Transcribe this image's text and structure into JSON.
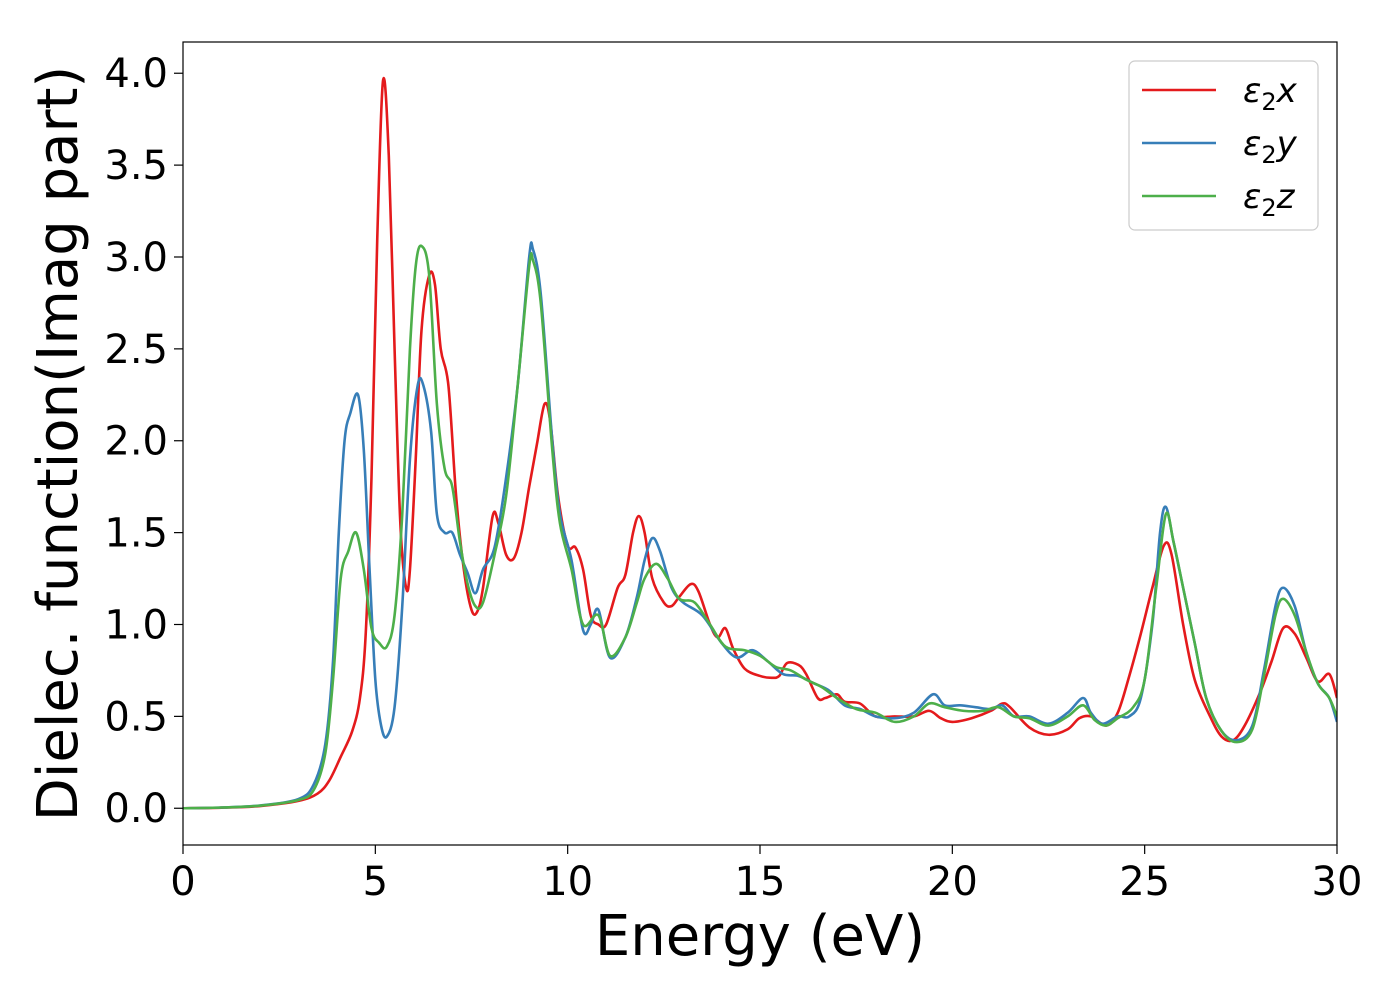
{
  "chart_data": {
    "type": "line",
    "xlabel": "Energy (eV)",
    "ylabel": "Dielec. function(Imag part)",
    "xlim": [
      0,
      30
    ],
    "ylim": [
      -0.2,
      4.17
    ],
    "xticks": [
      0,
      5,
      10,
      15,
      20,
      25,
      30
    ],
    "yticks": [
      0.0,
      0.5,
      1.0,
      1.5,
      2.0,
      2.5,
      3.0,
      3.5,
      4.0
    ],
    "xtick_labels": [
      "0",
      "5",
      "10",
      "15",
      "20",
      "25",
      "30"
    ],
    "ytick_labels": [
      "0.0",
      "0.5",
      "1.0",
      "1.5",
      "2.0",
      "2.5",
      "3.0",
      "3.5",
      "4.0"
    ],
    "grid": false,
    "legend_position": "top-right",
    "series": [
      {
        "name": "ε₂x",
        "legend_main": "ε",
        "legend_sub": "2",
        "legend_var": "x",
        "color": "#e41a1c",
        "points": [
          [
            0,
            0
          ],
          [
            1,
            0.003
          ],
          [
            2,
            0.012
          ],
          [
            3,
            0.04
          ],
          [
            3.5,
            0.08
          ],
          [
            3.8,
            0.15
          ],
          [
            4.1,
            0.28
          ],
          [
            4.4,
            0.42
          ],
          [
            4.6,
            0.6
          ],
          [
            4.75,
            0.95
          ],
          [
            4.9,
            1.8
          ],
          [
            5.05,
            3.1
          ],
          [
            5.2,
            3.96
          ],
          [
            5.35,
            3.55
          ],
          [
            5.5,
            2.5
          ],
          [
            5.65,
            1.55
          ],
          [
            5.8,
            1.2
          ],
          [
            5.9,
            1.3
          ],
          [
            6.05,
            1.9
          ],
          [
            6.2,
            2.6
          ],
          [
            6.4,
            2.9
          ],
          [
            6.55,
            2.85
          ],
          [
            6.7,
            2.5
          ],
          [
            6.9,
            2.3
          ],
          [
            7.1,
            1.7
          ],
          [
            7.3,
            1.3
          ],
          [
            7.5,
            1.08
          ],
          [
            7.65,
            1.07
          ],
          [
            7.8,
            1.2
          ],
          [
            8.05,
            1.59
          ],
          [
            8.2,
            1.55
          ],
          [
            8.4,
            1.38
          ],
          [
            8.6,
            1.36
          ],
          [
            8.8,
            1.5
          ],
          [
            9.0,
            1.75
          ],
          [
            9.2,
            1.98
          ],
          [
            9.4,
            2.2
          ],
          [
            9.55,
            2.1
          ],
          [
            9.75,
            1.7
          ],
          [
            10.0,
            1.43
          ],
          [
            10.2,
            1.42
          ],
          [
            10.4,
            1.3
          ],
          [
            10.6,
            1.05
          ],
          [
            10.8,
            1.0
          ],
          [
            11.0,
            1.0
          ],
          [
            11.3,
            1.2
          ],
          [
            11.5,
            1.27
          ],
          [
            11.7,
            1.5
          ],
          [
            11.85,
            1.59
          ],
          [
            12.0,
            1.5
          ],
          [
            12.2,
            1.25
          ],
          [
            12.5,
            1.12
          ],
          [
            12.7,
            1.1
          ],
          [
            12.9,
            1.15
          ],
          [
            13.2,
            1.22
          ],
          [
            13.4,
            1.18
          ],
          [
            13.7,
            1.0
          ],
          [
            13.9,
            0.93
          ],
          [
            14.1,
            0.98
          ],
          [
            14.3,
            0.87
          ],
          [
            14.6,
            0.76
          ],
          [
            15.0,
            0.72
          ],
          [
            15.3,
            0.71
          ],
          [
            15.5,
            0.72
          ],
          [
            15.7,
            0.79
          ],
          [
            16.0,
            0.78
          ],
          [
            16.2,
            0.73
          ],
          [
            16.5,
            0.6
          ],
          [
            16.7,
            0.6
          ],
          [
            17.0,
            0.62
          ],
          [
            17.2,
            0.58
          ],
          [
            17.6,
            0.57
          ],
          [
            18.0,
            0.5
          ],
          [
            18.5,
            0.5
          ],
          [
            19.0,
            0.5
          ],
          [
            19.4,
            0.53
          ],
          [
            19.7,
            0.49
          ],
          [
            20.0,
            0.47
          ],
          [
            20.5,
            0.49
          ],
          [
            21.0,
            0.53
          ],
          [
            21.3,
            0.57
          ],
          [
            21.5,
            0.55
          ],
          [
            22.0,
            0.44
          ],
          [
            22.5,
            0.4
          ],
          [
            23.0,
            0.43
          ],
          [
            23.3,
            0.49
          ],
          [
            23.6,
            0.5
          ],
          [
            24.0,
            0.45
          ],
          [
            24.3,
            0.52
          ],
          [
            24.6,
            0.72
          ],
          [
            24.9,
            0.95
          ],
          [
            25.2,
            1.2
          ],
          [
            25.5,
            1.43
          ],
          [
            25.7,
            1.38
          ],
          [
            26.0,
            1.0
          ],
          [
            26.3,
            0.7
          ],
          [
            26.7,
            0.5
          ],
          [
            27.0,
            0.39
          ],
          [
            27.3,
            0.37
          ],
          [
            27.6,
            0.45
          ],
          [
            28.0,
            0.63
          ],
          [
            28.3,
            0.8
          ],
          [
            28.6,
            0.98
          ],
          [
            28.9,
            0.95
          ],
          [
            29.2,
            0.82
          ],
          [
            29.5,
            0.69
          ],
          [
            29.8,
            0.73
          ],
          [
            30.0,
            0.6
          ]
        ]
      },
      {
        "name": "ε₂y",
        "legend_main": "ε",
        "legend_sub": "2",
        "legend_var": "y",
        "color": "#377eb8",
        "points": [
          [
            0,
            0
          ],
          [
            1,
            0.004
          ],
          [
            2,
            0.015
          ],
          [
            3,
            0.05
          ],
          [
            3.4,
            0.13
          ],
          [
            3.7,
            0.35
          ],
          [
            3.9,
            0.8
          ],
          [
            4.05,
            1.5
          ],
          [
            4.2,
            2.0
          ],
          [
            4.35,
            2.15
          ],
          [
            4.55,
            2.25
          ],
          [
            4.7,
            1.95
          ],
          [
            4.85,
            1.3
          ],
          [
            5.0,
            0.7
          ],
          [
            5.15,
            0.45
          ],
          [
            5.3,
            0.39
          ],
          [
            5.5,
            0.55
          ],
          [
            5.7,
            1.1
          ],
          [
            5.9,
            1.9
          ],
          [
            6.1,
            2.3
          ],
          [
            6.25,
            2.3
          ],
          [
            6.45,
            2.05
          ],
          [
            6.6,
            1.6
          ],
          [
            6.8,
            1.5
          ],
          [
            7.0,
            1.5
          ],
          [
            7.2,
            1.38
          ],
          [
            7.4,
            1.28
          ],
          [
            7.6,
            1.17
          ],
          [
            7.8,
            1.3
          ],
          [
            8.1,
            1.42
          ],
          [
            8.4,
            1.8
          ],
          [
            8.7,
            2.3
          ],
          [
            9.0,
            3.0
          ],
          [
            9.1,
            3.04
          ],
          [
            9.3,
            2.8
          ],
          [
            9.6,
            2.0
          ],
          [
            9.8,
            1.6
          ],
          [
            10.1,
            1.35
          ],
          [
            10.4,
            0.97
          ],
          [
            10.6,
            1.0
          ],
          [
            10.8,
            1.08
          ],
          [
            11.1,
            0.82
          ],
          [
            11.5,
            0.93
          ],
          [
            11.8,
            1.15
          ],
          [
            12.0,
            1.35
          ],
          [
            12.2,
            1.47
          ],
          [
            12.4,
            1.4
          ],
          [
            12.7,
            1.2
          ],
          [
            13.0,
            1.12
          ],
          [
            13.5,
            1.05
          ],
          [
            14.0,
            0.9
          ],
          [
            14.4,
            0.82
          ],
          [
            14.8,
            0.86
          ],
          [
            15.2,
            0.8
          ],
          [
            15.6,
            0.73
          ],
          [
            16.0,
            0.72
          ],
          [
            16.4,
            0.68
          ],
          [
            16.8,
            0.64
          ],
          [
            17.2,
            0.56
          ],
          [
            17.6,
            0.54
          ],
          [
            18.0,
            0.5
          ],
          [
            18.5,
            0.49
          ],
          [
            19.0,
            0.52
          ],
          [
            19.5,
            0.62
          ],
          [
            19.8,
            0.56
          ],
          [
            20.2,
            0.56
          ],
          [
            20.6,
            0.55
          ],
          [
            21.0,
            0.54
          ],
          [
            21.3,
            0.56
          ],
          [
            21.6,
            0.5
          ],
          [
            22.0,
            0.5
          ],
          [
            22.5,
            0.46
          ],
          [
            23.0,
            0.52
          ],
          [
            23.4,
            0.6
          ],
          [
            23.6,
            0.52
          ],
          [
            23.9,
            0.46
          ],
          [
            24.3,
            0.5
          ],
          [
            24.6,
            0.5
          ],
          [
            24.9,
            0.6
          ],
          [
            25.2,
            1.0
          ],
          [
            25.4,
            1.5
          ],
          [
            25.55,
            1.64
          ],
          [
            25.75,
            1.45
          ],
          [
            26.0,
            1.2
          ],
          [
            26.3,
            0.9
          ],
          [
            26.6,
            0.6
          ],
          [
            27.0,
            0.42
          ],
          [
            27.4,
            0.37
          ],
          [
            27.8,
            0.45
          ],
          [
            28.1,
            0.75
          ],
          [
            28.4,
            1.1
          ],
          [
            28.6,
            1.2
          ],
          [
            28.9,
            1.1
          ],
          [
            29.2,
            0.85
          ],
          [
            29.5,
            0.68
          ],
          [
            29.8,
            0.6
          ],
          [
            30.0,
            0.47
          ]
        ]
      },
      {
        "name": "ε₂z",
        "legend_main": "ε",
        "legend_sub": "2",
        "legend_var": "z",
        "color": "#4daf4a",
        "points": [
          [
            0,
            0
          ],
          [
            1,
            0.004
          ],
          [
            2,
            0.014
          ],
          [
            3,
            0.045
          ],
          [
            3.4,
            0.1
          ],
          [
            3.7,
            0.3
          ],
          [
            3.9,
            0.7
          ],
          [
            4.1,
            1.25
          ],
          [
            4.3,
            1.4
          ],
          [
            4.5,
            1.5
          ],
          [
            4.7,
            1.3
          ],
          [
            4.9,
            0.98
          ],
          [
            5.1,
            0.9
          ],
          [
            5.3,
            0.88
          ],
          [
            5.5,
            1.05
          ],
          [
            5.7,
            1.6
          ],
          [
            5.9,
            2.5
          ],
          [
            6.05,
            2.95
          ],
          [
            6.2,
            3.06
          ],
          [
            6.4,
            2.9
          ],
          [
            6.6,
            2.2
          ],
          [
            6.8,
            1.85
          ],
          [
            7.0,
            1.75
          ],
          [
            7.2,
            1.45
          ],
          [
            7.4,
            1.22
          ],
          [
            7.6,
            1.1
          ],
          [
            7.8,
            1.12
          ],
          [
            8.1,
            1.38
          ],
          [
            8.4,
            1.7
          ],
          [
            8.7,
            2.3
          ],
          [
            9.0,
            2.95
          ],
          [
            9.1,
            2.98
          ],
          [
            9.3,
            2.75
          ],
          [
            9.6,
            1.95
          ],
          [
            9.8,
            1.55
          ],
          [
            10.1,
            1.3
          ],
          [
            10.4,
            1.0
          ],
          [
            10.8,
            1.05
          ],
          [
            11.1,
            0.83
          ],
          [
            11.5,
            0.93
          ],
          [
            11.8,
            1.12
          ],
          [
            12.0,
            1.25
          ],
          [
            12.3,
            1.33
          ],
          [
            12.6,
            1.25
          ],
          [
            12.9,
            1.14
          ],
          [
            13.3,
            1.12
          ],
          [
            13.7,
            1.0
          ],
          [
            14.1,
            0.88
          ],
          [
            14.6,
            0.86
          ],
          [
            15.0,
            0.83
          ],
          [
            15.4,
            0.77
          ],
          [
            15.8,
            0.75
          ],
          [
            16.2,
            0.7
          ],
          [
            16.6,
            0.66
          ],
          [
            17.0,
            0.6
          ],
          [
            17.5,
            0.54
          ],
          [
            18.0,
            0.52
          ],
          [
            18.5,
            0.47
          ],
          [
            19.0,
            0.5
          ],
          [
            19.4,
            0.57
          ],
          [
            19.8,
            0.55
          ],
          [
            20.3,
            0.53
          ],
          [
            20.8,
            0.53
          ],
          [
            21.2,
            0.55
          ],
          [
            21.6,
            0.5
          ],
          [
            22.0,
            0.49
          ],
          [
            22.5,
            0.45
          ],
          [
            23.0,
            0.5
          ],
          [
            23.4,
            0.56
          ],
          [
            23.7,
            0.48
          ],
          [
            24.0,
            0.45
          ],
          [
            24.3,
            0.49
          ],
          [
            24.7,
            0.55
          ],
          [
            25.0,
            0.7
          ],
          [
            25.3,
            1.2
          ],
          [
            25.55,
            1.6
          ],
          [
            25.75,
            1.45
          ],
          [
            26.0,
            1.2
          ],
          [
            26.3,
            0.9
          ],
          [
            26.6,
            0.6
          ],
          [
            27.0,
            0.42
          ],
          [
            27.4,
            0.36
          ],
          [
            27.8,
            0.43
          ],
          [
            28.1,
            0.72
          ],
          [
            28.4,
            1.05
          ],
          [
            28.6,
            1.14
          ],
          [
            28.9,
            1.05
          ],
          [
            29.2,
            0.85
          ],
          [
            29.5,
            0.68
          ],
          [
            29.8,
            0.6
          ],
          [
            30.0,
            0.5
          ]
        ]
      }
    ]
  }
}
